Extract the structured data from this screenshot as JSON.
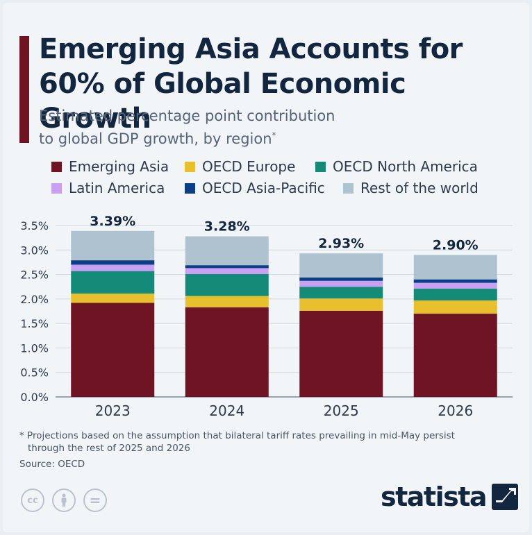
{
  "header": {
    "title": "Emerging Asia Accounts for 60% of Global Economic Growth",
    "title_line1": "Emerging Asia Accounts for",
    "title_line2": "60% of Global Economic Growth",
    "subtitle_line1": "Estimated percentage point contribution",
    "subtitle_line2": "to global GDP growth, by region",
    "subtitle_marker": "*",
    "accent_color": "#6e1423"
  },
  "legend": [
    {
      "label": "Emerging Asia",
      "color": "#6e1423"
    },
    {
      "label": "OECD Europe",
      "color": "#e8c02e"
    },
    {
      "label": "OECD North America",
      "color": "#148a78"
    },
    {
      "label": "Latin America",
      "color": "#c9a1f2"
    },
    {
      "label": "OECD Asia-Pacific",
      "color": "#0a3e86"
    },
    {
      "label": "Rest of the world",
      "color": "#aec3cf"
    }
  ],
  "chart_data": {
    "type": "bar",
    "stacked": true,
    "categories": [
      "2023",
      "2024",
      "2025",
      "2026"
    ],
    "series": [
      {
        "name": "Emerging Asia",
        "color": "#6e1423",
        "values": [
          1.92,
          1.83,
          1.76,
          1.7
        ]
      },
      {
        "name": "OECD Europe",
        "color": "#e8c02e",
        "values": [
          0.19,
          0.23,
          0.25,
          0.27
        ]
      },
      {
        "name": "OECD North America",
        "color": "#148a78",
        "values": [
          0.46,
          0.45,
          0.24,
          0.24
        ]
      },
      {
        "name": "Latin America",
        "color": "#c9a1f2",
        "values": [
          0.13,
          0.12,
          0.12,
          0.12
        ]
      },
      {
        "name": "OECD Asia-Pacific",
        "color": "#0a3e86",
        "values": [
          0.09,
          0.06,
          0.07,
          0.07
        ]
      },
      {
        "name": "Rest of the world",
        "color": "#aec3cf",
        "values": [
          0.6,
          0.59,
          0.49,
          0.5
        ]
      }
    ],
    "totals": [
      3.39,
      3.28,
      2.93,
      2.9
    ],
    "total_labels": [
      "3.39%",
      "3.28%",
      "2.93%",
      "2.90%"
    ],
    "yticks": [
      "0.0%",
      "0.5%",
      "1.0%",
      "1.5%",
      "2.0%",
      "2.5%",
      "3.0%",
      "3.5%"
    ],
    "ytick_values": [
      0,
      0.5,
      1.0,
      1.5,
      2.0,
      2.5,
      3.0,
      3.5
    ],
    "ylim": [
      0,
      3.5
    ],
    "grid": true,
    "title": "Emerging Asia Accounts for 60% of Global Economic Growth",
    "xlabel": "",
    "ylabel": ""
  },
  "footer": {
    "footnote_line1": "* Projections based on the assumption that bilateral tariff rates prevailing in mid-May persist",
    "footnote_line2": "through the rest of 2025 and 2026",
    "source": "Source: OECD",
    "license_icons": [
      "cc",
      "by",
      "="
    ],
    "logo_text": "statista"
  }
}
